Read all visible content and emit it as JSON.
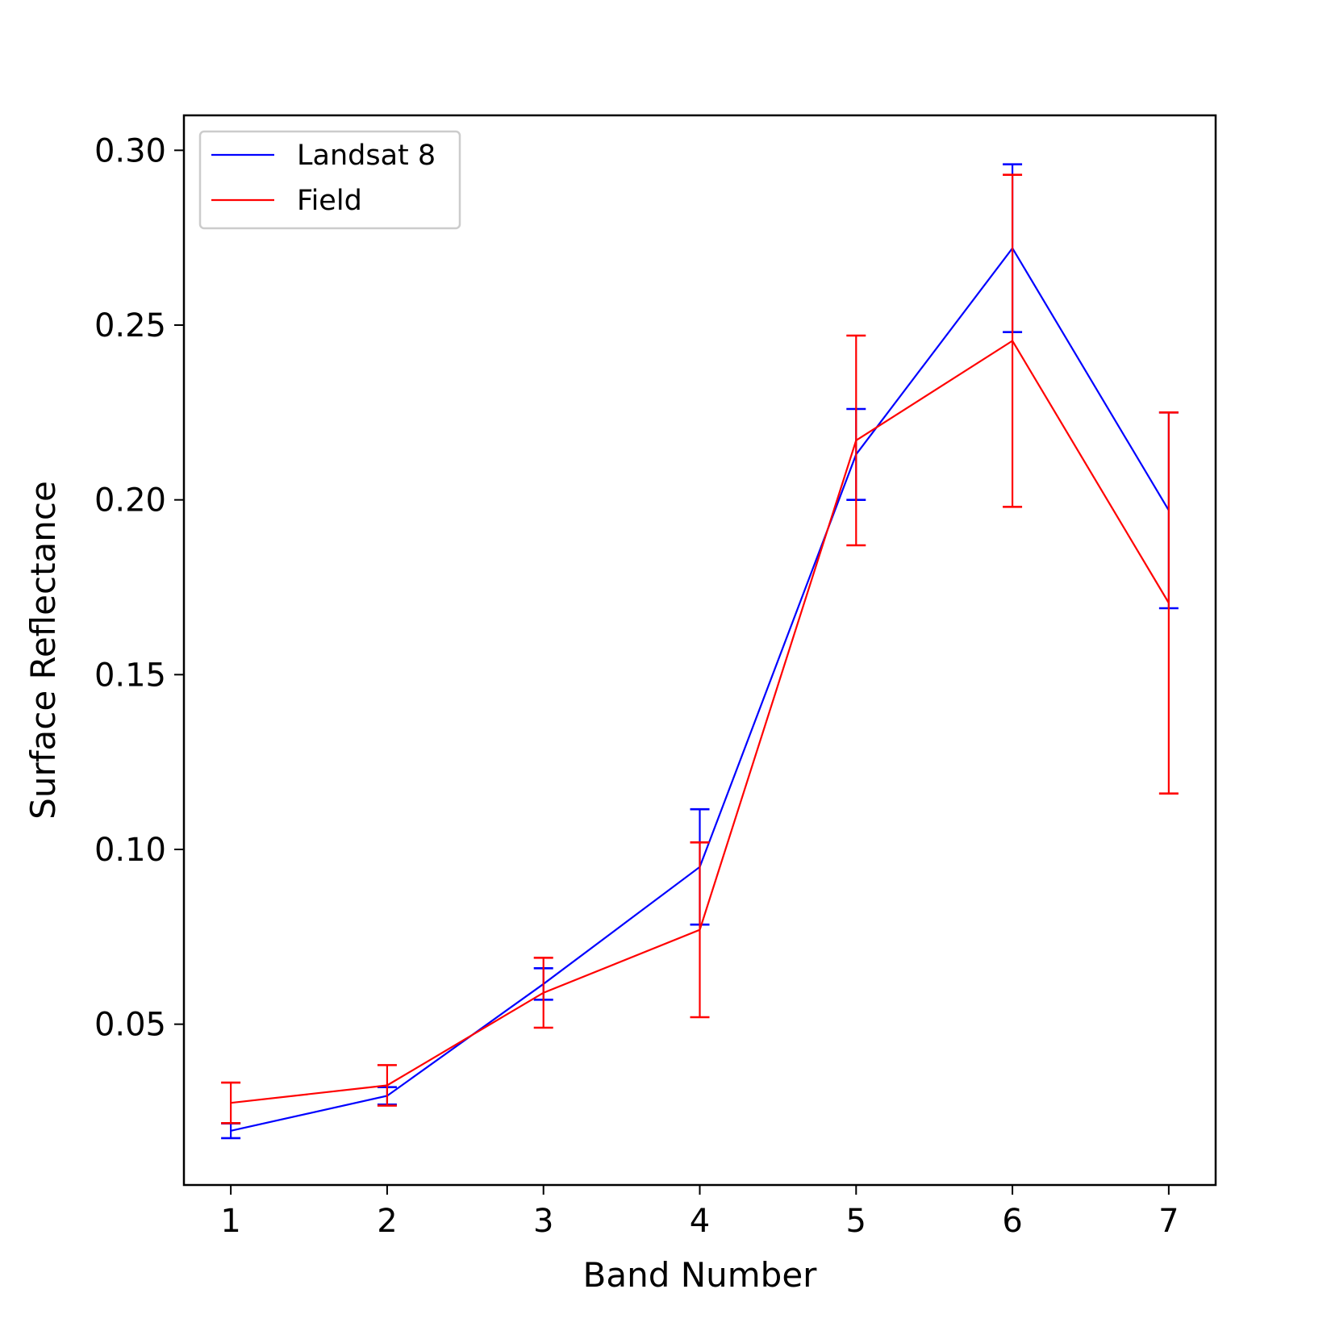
{
  "chart_data": {
    "type": "line",
    "xlabel": "Band Number",
    "ylabel": "Surface Reflectance",
    "x": [
      1,
      2,
      3,
      4,
      5,
      6,
      7
    ],
    "xlim": [
      0.7,
      7.3
    ],
    "ylim": [
      0.004,
      0.31
    ],
    "xticks": [
      "1",
      "2",
      "3",
      "4",
      "5",
      "6",
      "7"
    ],
    "yticks": [
      "0.05",
      "0.10",
      "0.15",
      "0.20",
      "0.25",
      "0.30"
    ],
    "grid": false,
    "legend_position": "top-left",
    "series": [
      {
        "name": "Landsat 8",
        "color": "#0000ff",
        "values": [
          0.0195,
          0.0295,
          0.0615,
          0.095,
          0.213,
          0.272,
          0.197
        ],
        "error": [
          0.0021,
          0.0025,
          0.0045,
          0.0165,
          0.013,
          0.024,
          0.028
        ]
      },
      {
        "name": "Field",
        "color": "#ff0000",
        "values": [
          0.0275,
          0.0325,
          0.059,
          0.077,
          0.217,
          0.2455,
          0.1705
        ],
        "error": [
          0.0058,
          0.0058,
          0.01,
          0.025,
          0.03,
          0.0475,
          0.0545
        ]
      }
    ]
  }
}
